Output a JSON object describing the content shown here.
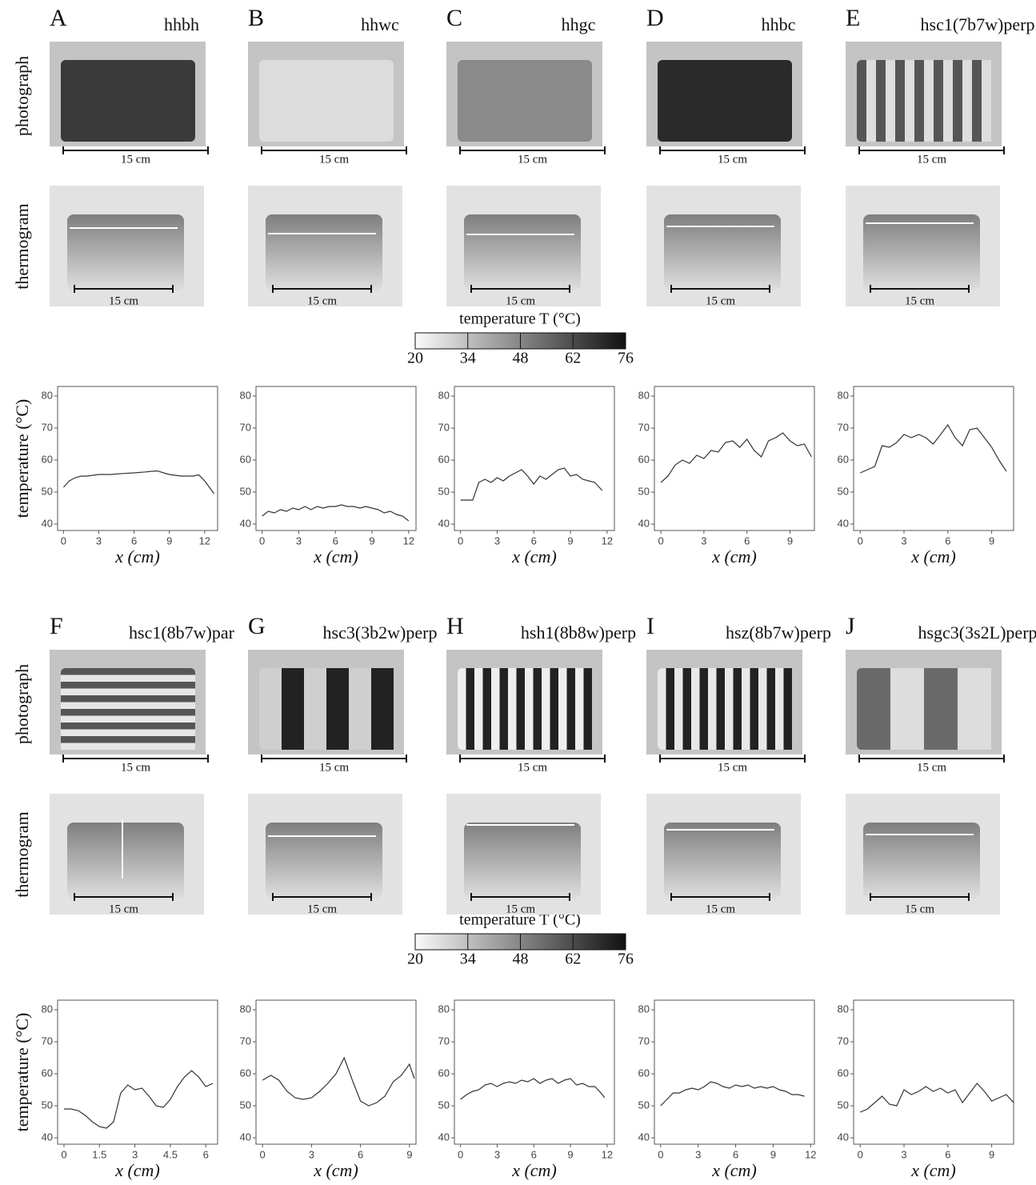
{
  "figure": {
    "row_labels": [
      "photograph",
      "thermogram"
    ],
    "scale_bar": "15 cm",
    "colorbar": {
      "label": "temperature T (°C)",
      "lim": [
        20,
        76
      ],
      "ticks": [
        20,
        34,
        48,
        62,
        76
      ]
    }
  },
  "chart_data": [
    {
      "type": "line",
      "title": "A",
      "subtitle": "hhbh",
      "xlabel": "x (cm)",
      "ylabel": "temperature (°C)",
      "color": "#333",
      "x": [
        0,
        0.5,
        1,
        1.5,
        2,
        3,
        4,
        5,
        6,
        7,
        7.5,
        8,
        8.5,
        9,
        10,
        11,
        11.5,
        12,
        12.8
      ],
      "values": [
        51.5,
        53.5,
        54.5,
        55,
        55,
        55.5,
        55.5,
        55.8,
        56,
        56.3,
        56.5,
        56.6,
        56,
        55.5,
        55,
        55,
        55.4,
        53.5,
        49.5
      ],
      "xlim": [
        -0.5,
        13.1
      ],
      "ylim": [
        38,
        83
      ],
      "xticks": [
        0,
        3,
        6,
        9,
        12
      ],
      "yticks": [
        40,
        50,
        60,
        70,
        80
      ]
    },
    {
      "type": "line",
      "title": "B",
      "subtitle": "hhwc",
      "xlabel": "x (cm)",
      "color": "#333",
      "x": [
        0,
        0.5,
        1,
        1.5,
        2,
        2.5,
        3,
        3.5,
        4,
        4.5,
        5,
        5.5,
        6,
        6.5,
        7,
        7.5,
        8,
        8.5,
        9,
        9.5,
        10,
        10.5,
        11,
        11.5,
        12
      ],
      "values": [
        42.5,
        44,
        43.5,
        44.5,
        44,
        45,
        44.5,
        45.5,
        44.5,
        45.5,
        45,
        45.5,
        45.5,
        46,
        45.5,
        45.5,
        45,
        45.5,
        45,
        44.5,
        43.5,
        44,
        43,
        42.5,
        41
      ],
      "xlim": [
        -0.5,
        12.6
      ],
      "ylim": [
        38,
        83
      ],
      "xticks": [
        0,
        3,
        6,
        9,
        12
      ],
      "yticks": [
        40,
        50,
        60,
        70,
        80
      ]
    },
    {
      "type": "line",
      "title": "C",
      "subtitle": "hhgc",
      "xlabel": "x (cm)",
      "color": "#333",
      "x": [
        0,
        0.5,
        1,
        1.5,
        2,
        2.5,
        3,
        3.5,
        4,
        4.5,
        5,
        5.5,
        6,
        6.5,
        7,
        7.5,
        8,
        8.5,
        9,
        9.5,
        10,
        10.5,
        11,
        11.6
      ],
      "values": [
        47.5,
        47.5,
        47.5,
        53,
        54,
        53,
        54.5,
        53.5,
        55,
        56,
        57,
        55,
        52.5,
        55,
        54,
        55.5,
        57,
        57.5,
        55,
        55.5,
        54,
        53.5,
        53,
        50.5
      ],
      "xlim": [
        -0.5,
        12.6
      ],
      "ylim": [
        38,
        83
      ],
      "xticks": [
        0,
        3,
        6,
        9,
        12
      ],
      "yticks": [
        40,
        50,
        60,
        70,
        80
      ]
    },
    {
      "type": "line",
      "title": "D",
      "subtitle": "hhbc",
      "xlabel": "x (cm)",
      "color": "#333",
      "x": [
        0,
        0.5,
        1,
        1.5,
        2,
        2.5,
        3,
        3.5,
        4,
        4.5,
        5,
        5.5,
        6,
        6.5,
        7,
        7.5,
        8,
        8.5,
        9,
        9.5,
        10,
        10.5
      ],
      "values": [
        53,
        55,
        58.5,
        60,
        59,
        61.5,
        60.5,
        63,
        62.5,
        65.5,
        66,
        64,
        66.5,
        63,
        61,
        66,
        67,
        68.5,
        66,
        64.5,
        65,
        61
      ],
      "xlim": [
        -0.45,
        10.7
      ],
      "ylim": [
        38,
        83
      ],
      "xticks": [
        0,
        3,
        6,
        9
      ],
      "yticks": [
        40,
        50,
        60,
        70,
        80
      ]
    },
    {
      "type": "line",
      "title": "E",
      "subtitle": "hsc1(7b7w)perp",
      "xlabel": "x (cm)",
      "color": "#333",
      "x": [
        0,
        0.5,
        1,
        1.5,
        2,
        2.5,
        3,
        3.5,
        4,
        4.5,
        5,
        5.5,
        6,
        6.5,
        7,
        7.5,
        8,
        8.5,
        9,
        9.5,
        10
      ],
      "values": [
        56,
        57,
        58,
        64.5,
        64,
        65.5,
        68,
        67,
        68,
        67,
        65,
        68,
        71,
        67,
        64.5,
        69.5,
        70,
        67,
        64,
        60,
        56.5
      ],
      "xlim": [
        -0.45,
        10.5
      ],
      "ylim": [
        38,
        83
      ],
      "xticks": [
        0,
        3,
        6,
        9
      ],
      "yticks": [
        40,
        50,
        60,
        70,
        80
      ]
    },
    {
      "type": "line",
      "title": "F",
      "subtitle": "hsc1(8b7w)par",
      "xlabel": "x (cm)",
      "ylabel": "temperature (°C)",
      "color": "#333",
      "x": [
        0,
        0.3,
        0.6,
        0.9,
        1.2,
        1.5,
        1.8,
        2.1,
        2.4,
        2.7,
        3,
        3.3,
        3.6,
        3.9,
        4.2,
        4.5,
        4.8,
        5.1,
        5.4,
        5.7,
        6,
        6.3
      ],
      "values": [
        49,
        49,
        48.5,
        47,
        45,
        43.5,
        43,
        45,
        54,
        56.5,
        55,
        55.5,
        53,
        50,
        49.5,
        52,
        56,
        59,
        61,
        59,
        56,
        57
      ],
      "xlim": [
        -0.27,
        6.5
      ],
      "ylim": [
        38,
        83
      ],
      "xticks": [
        0,
        1.5,
        3,
        4.5,
        6
      ],
      "yticks": [
        40,
        50,
        60,
        70,
        80
      ]
    },
    {
      "type": "line",
      "title": "G",
      "subtitle": "hsc3(3b2w)perp",
      "xlabel": "x (cm)",
      "color": "#333",
      "x": [
        0,
        0.5,
        1,
        1.5,
        2,
        2.5,
        3,
        3.5,
        4,
        4.5,
        5,
        5.5,
        6,
        6.5,
        7,
        7.5,
        8,
        8.5,
        9,
        9.3
      ],
      "values": [
        58,
        59.5,
        58,
        54.5,
        52.5,
        52,
        52.5,
        54.5,
        57,
        60,
        65,
        58,
        51.5,
        50,
        51,
        53,
        57.5,
        59.5,
        63,
        58.5
      ],
      "xlim": [
        -0.4,
        9.4
      ],
      "ylim": [
        38,
        83
      ],
      "xticks": [
        0,
        3,
        6,
        9
      ],
      "yticks": [
        40,
        50,
        60,
        70,
        80
      ]
    },
    {
      "type": "line",
      "title": "H",
      "subtitle": "hsh1(8b8w)perp",
      "xlabel": "x (cm)",
      "color": "#333",
      "x": [
        0,
        0.5,
        1,
        1.5,
        2,
        2.5,
        3,
        3.5,
        4,
        4.5,
        5,
        5.5,
        6,
        6.5,
        7,
        7.5,
        8,
        8.5,
        9,
        9.5,
        10,
        10.5,
        11,
        11.5,
        11.8
      ],
      "values": [
        52,
        53.5,
        54.5,
        55,
        56.5,
        57,
        56,
        57,
        57.5,
        57,
        58,
        57.5,
        58.5,
        57,
        58,
        58.5,
        57,
        58,
        58.5,
        56.5,
        57,
        56,
        56,
        54,
        52.5
      ],
      "xlim": [
        -0.5,
        12.6
      ],
      "ylim": [
        38,
        83
      ],
      "xticks": [
        0,
        3,
        6,
        9,
        12
      ],
      "yticks": [
        40,
        50,
        60,
        70,
        80
      ]
    },
    {
      "type": "line",
      "title": "I",
      "subtitle": "hsz(8b7w)perp",
      "xlabel": "x (cm)",
      "color": "#333",
      "x": [
        0,
        0.5,
        1,
        1.5,
        2,
        2.5,
        3,
        3.5,
        4,
        4.5,
        5,
        5.5,
        6,
        6.5,
        7,
        7.5,
        8,
        8.5,
        9,
        9.5,
        10,
        10.5,
        11,
        11.5
      ],
      "values": [
        50,
        52,
        54,
        54,
        55,
        55.5,
        55,
        56,
        57.5,
        57,
        56,
        55.5,
        56.5,
        56,
        56.5,
        55.5,
        56,
        55.5,
        56,
        55,
        54.5,
        53.5,
        53.5,
        53
      ],
      "xlim": [
        -0.5,
        12.3
      ],
      "ylim": [
        38,
        83
      ],
      "xticks": [
        0,
        3,
        6,
        9,
        12
      ],
      "yticks": [
        40,
        50,
        60,
        70,
        80
      ]
    },
    {
      "type": "line",
      "title": "J",
      "subtitle": "hsgc3(3s2L)perp",
      "xlabel": "x (cm)",
      "color": "#333",
      "x": [
        0,
        0.5,
        1,
        1.5,
        2,
        2.5,
        3,
        3.5,
        4,
        4.5,
        5,
        5.5,
        6,
        6.5,
        7,
        7.5,
        8,
        8.5,
        9,
        9.5,
        10,
        10.5
      ],
      "values": [
        48,
        49,
        51,
        53,
        50.5,
        50,
        55,
        53.5,
        54.5,
        56,
        54.5,
        55.5,
        54,
        55,
        51,
        54,
        57,
        54.5,
        51.5,
        52.5,
        53.5,
        51
      ],
      "xlim": [
        -0.45,
        10.5
      ],
      "ylim": [
        38,
        83
      ],
      "xticks": [
        0,
        3,
        6,
        9
      ],
      "yticks": [
        40,
        50,
        60,
        70,
        80
      ]
    }
  ]
}
